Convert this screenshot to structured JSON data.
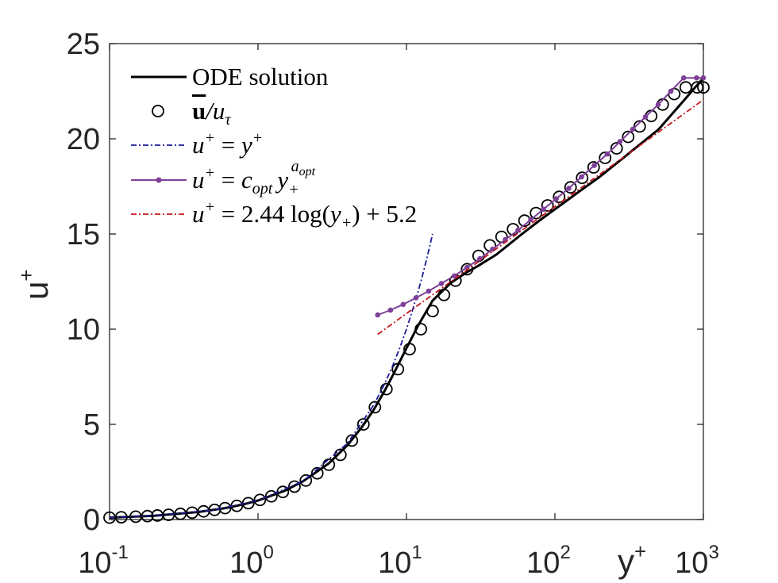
{
  "chart_data": {
    "type": "line",
    "xscale": "log",
    "xlim": [
      0.1,
      1000
    ],
    "ylim": [
      0,
      25
    ],
    "xlabel": "y",
    "xlabel_sup": "+",
    "ylabel": "u",
    "ylabel_sup": "+",
    "y_ticks": [
      0,
      5,
      10,
      15,
      20,
      25
    ],
    "y_tick_labels": [
      "0",
      "5",
      "10",
      "15",
      "20",
      "25"
    ],
    "x_ticks": [
      0.1,
      1,
      10,
      100,
      1000
    ],
    "x_tick_labels": [
      {
        "base": "10",
        "exp": "-1"
      },
      {
        "base": "10",
        "exp": "0"
      },
      {
        "base": "10",
        "exp": "1"
      },
      {
        "base": "10",
        "exp": "2"
      },
      {
        "base": "10",
        "exp": "3"
      }
    ],
    "grid": false,
    "legend_position": "top-left",
    "series": [
      {
        "name": "ODE solution",
        "style": "solid",
        "color": "#000000",
        "x": [
          0.1,
          0.2,
          0.4,
          0.6,
          0.8,
          1.0,
          1.5,
          2.0,
          3.0,
          4.0,
          5.0,
          6.0,
          7.0,
          8.0,
          10.0,
          12.0,
          15.0,
          20.0,
          25.0,
          30.0,
          40.0,
          60.0,
          80.0,
          100.0,
          150.0,
          200.0,
          300.0,
          500.0,
          700.0,
          1000.0
        ],
        "y": [
          0.1,
          0.2,
          0.4,
          0.6,
          0.8,
          1.0,
          1.5,
          2.0,
          2.95,
          3.9,
          4.85,
          5.75,
          6.65,
          7.5,
          9.0,
          10.2,
          11.5,
          12.45,
          12.95,
          13.3,
          13.9,
          15.0,
          15.75,
          16.3,
          17.3,
          18.0,
          19.1,
          20.5,
          21.8,
          23.2
        ]
      },
      {
        "name": "ū/u_τ",
        "style": "markers",
        "marker": "circle-open",
        "color": "#000000",
        "x": [
          0.1,
          0.12,
          0.15,
          0.18,
          0.21,
          0.25,
          0.3,
          0.36,
          0.43,
          0.51,
          0.6,
          0.72,
          0.86,
          1.03,
          1.23,
          1.47,
          1.76,
          2.1,
          2.51,
          3.0,
          3.59,
          4.29,
          5.13,
          6.13,
          7.33,
          8.76,
          10.5,
          12.5,
          15.0,
          17.9,
          21.4,
          25.6,
          30.6,
          36.5,
          43.7,
          52.2,
          62.4,
          74.6,
          89.2,
          106.7,
          127.5,
          152.5,
          182.3,
          217.9,
          260.5,
          311.5,
          372.4,
          445.2,
          532.3,
          636.3,
          760.8,
          909.5,
          1000.0
        ],
        "y": [
          0.1,
          0.12,
          0.15,
          0.18,
          0.21,
          0.25,
          0.3,
          0.36,
          0.43,
          0.51,
          0.6,
          0.72,
          0.86,
          1.03,
          1.22,
          1.45,
          1.73,
          2.05,
          2.43,
          2.88,
          3.4,
          4.15,
          5.0,
          5.9,
          6.85,
          7.9,
          8.95,
          10.0,
          10.95,
          11.8,
          12.55,
          13.15,
          13.85,
          14.4,
          14.85,
          15.25,
          15.7,
          16.1,
          16.5,
          16.95,
          17.45,
          17.95,
          18.5,
          19.0,
          19.5,
          20.1,
          20.65,
          21.2,
          21.8,
          22.35,
          22.7,
          22.7,
          22.7
        ]
      },
      {
        "name": "u+ = y+",
        "style": "dashdot",
        "color": "#1b1b9c",
        "x": [
          0.1,
          0.2,
          0.5,
          1.0,
          2.0,
          4.0,
          6.0,
          7.0,
          8.0,
          9.0,
          10.0,
          11.0,
          12.0,
          13.0,
          14.0,
          15.0
        ],
        "y": [
          0.1,
          0.2,
          0.5,
          1.0,
          2.0,
          4.0,
          6.0,
          7.0,
          8.0,
          9.0,
          10.0,
          11.0,
          12.0,
          13.0,
          14.0,
          15.0
        ]
      },
      {
        "name": "u+ = c_opt y+^a_opt",
        "style": "solid-dots",
        "color": "#7e3f98",
        "x": [
          6.4,
          7.8,
          9.5,
          11.6,
          14.1,
          17.2,
          21.0,
          25.6,
          31.2,
          38.0,
          46.3,
          56.4,
          68.7,
          83.7,
          102,
          124,
          151,
          184,
          225,
          274,
          334,
          407,
          496,
          604,
          737,
          900,
          1000
        ],
        "y": [
          10.75,
          11.0,
          11.3,
          11.65,
          12.0,
          12.4,
          12.8,
          13.25,
          13.7,
          14.2,
          14.7,
          15.2,
          15.75,
          16.3,
          16.85,
          17.4,
          18.0,
          18.6,
          19.2,
          19.85,
          20.5,
          21.15,
          21.8,
          22.5,
          23.2,
          23.2,
          23.2
        ]
      },
      {
        "name": "u+ = 2.44 log(y+) + 5.2",
        "style": "dashdot",
        "color": "#c4161c",
        "x": [
          6.4,
          10,
          20,
          50,
          100,
          200,
          500,
          1000
        ],
        "y": [
          9.73,
          10.82,
          12.51,
          14.75,
          16.44,
          18.13,
          20.36,
          22.05
        ]
      }
    ],
    "legend": [
      {
        "key": "ode",
        "label": "ODE solution"
      },
      {
        "key": "meas",
        "label_main": "u",
        "label_rest": "/u",
        "label_sub": "τ"
      },
      {
        "key": "visc",
        "label_a": "u",
        "label_a_sup": "+",
        "label_eq": " = ",
        "label_b": "y",
        "label_b_sup": "+"
      },
      {
        "key": "opt",
        "label_a": "u",
        "label_a_sup": "+",
        "label_eq": " = ",
        "label_c": "c",
        "label_c_sub": "opt",
        "label_y": "y",
        "label_y_sub": "+",
        "label_y_sup": "a",
        "label_y_supsub": "opt"
      },
      {
        "key": "log",
        "label_a": "u",
        "label_a_sup": "+",
        "label_eq": " = 2.44 log(",
        "label_y": "y",
        "label_y_sub": "+",
        "label_tail": ") + 5.2"
      }
    ]
  }
}
